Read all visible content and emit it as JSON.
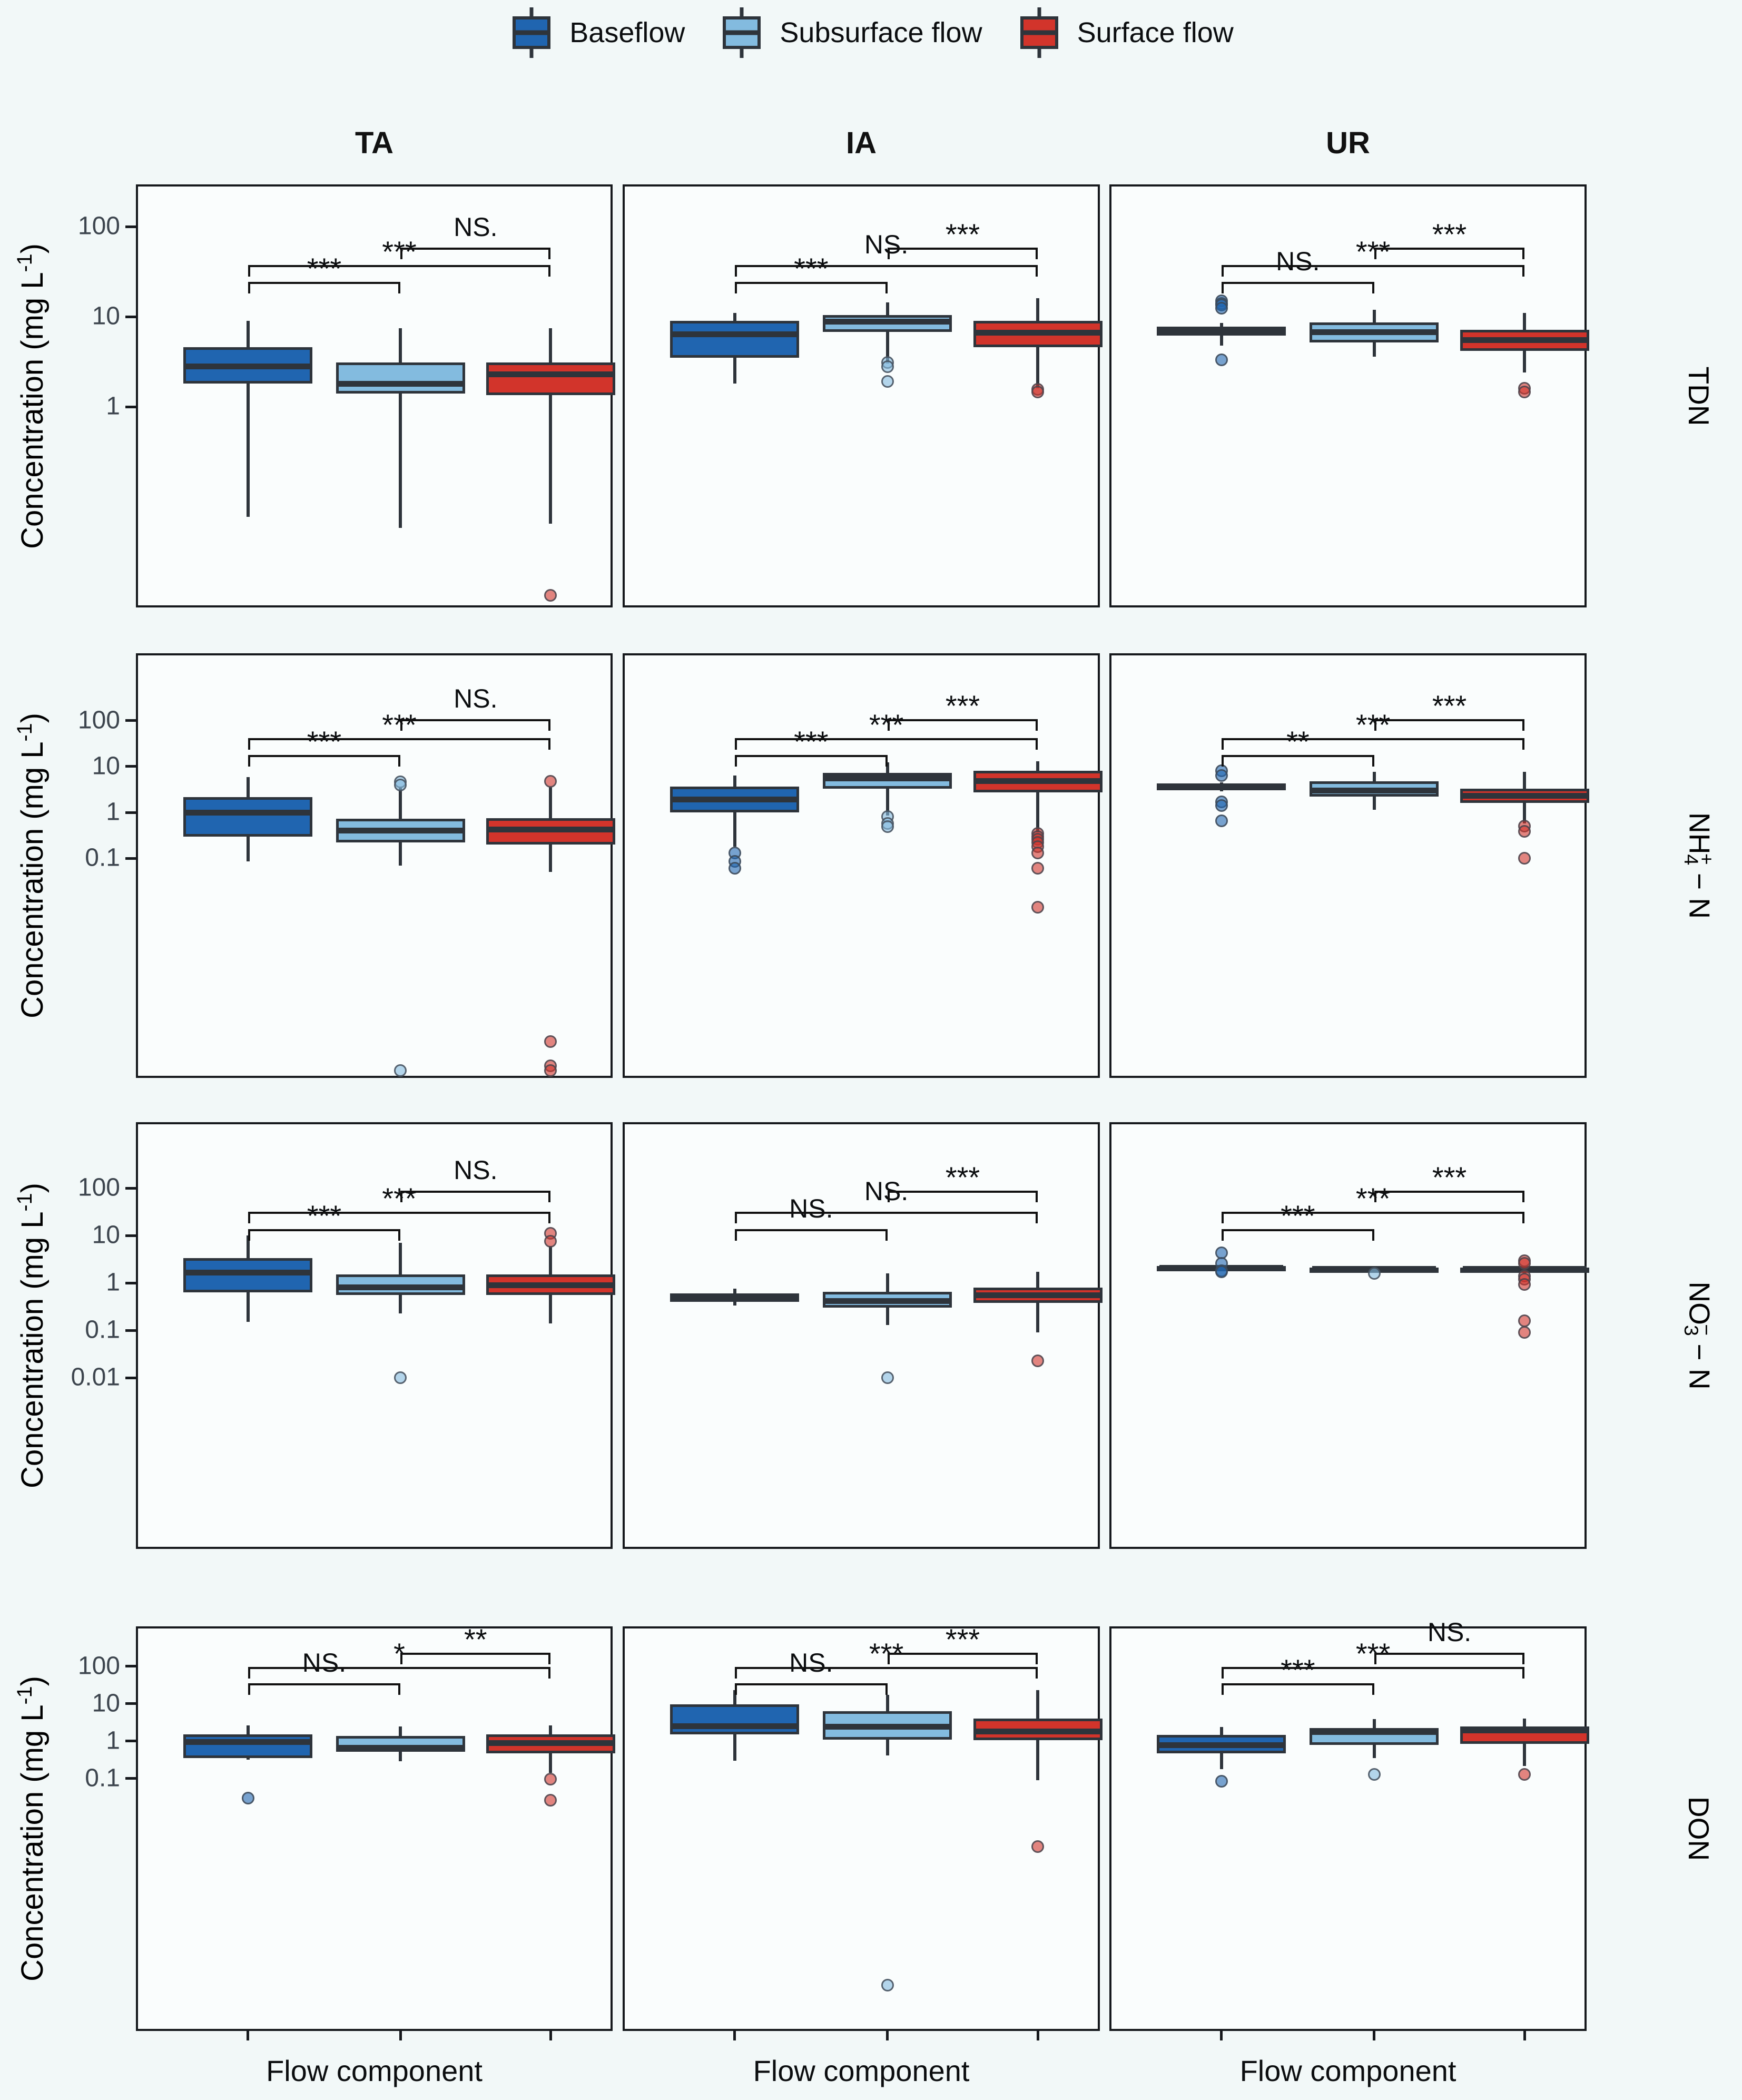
{
  "legend": {
    "items": [
      {
        "label": "Baseflow",
        "color": "#2065b0"
      },
      {
        "label": "Subsurface flow",
        "color": "#83bbdf"
      },
      {
        "label": "Surface flow",
        "color": "#d2342b"
      }
    ]
  },
  "columns": [
    "TA",
    "IA",
    "UR"
  ],
  "axis": {
    "y_label": "Concentration (mg L-1)",
    "y_label_parts": [
      {
        "t": "Concentration (mg L"
      },
      {
        "t": "-1",
        "sup": true
      },
      {
        "t": ")"
      }
    ],
    "x_label": "Flow component"
  },
  "chart_data": {
    "type": "box",
    "y_scale": "log10",
    "legend_position": "top",
    "rows": [
      {
        "facet": "TDN",
        "facet_parts": [
          {
            "t": "TDN"
          }
        ],
        "y_ticks": [
          100,
          10,
          1
        ],
        "y_log_top": 2.47,
        "y_log_bottom": -2.23,
        "sig_tiers": {
          "1-2": 0.23,
          "1-3": 0.19,
          "2-3": 0.15
        },
        "panels": [
          {
            "site": "TA",
            "series": [
              {
                "name": "Baseflow",
                "whislo": 0.06,
                "q1": 1.8,
                "med": 2.8,
                "q3": 4.6,
                "whishi": 9,
                "outliers": []
              },
              {
                "name": "Subsurface flow",
                "whislo": 0.045,
                "q1": 1.4,
                "med": 1.8,
                "q3": 3.1,
                "whishi": 7.4,
                "outliers": []
              },
              {
                "name": "Surface flow",
                "whislo": 0.05,
                "q1": 1.35,
                "med": 2.3,
                "q3": 3.1,
                "whishi": 7.4,
                "outliers": [
                  0.008
                ]
              }
            ],
            "significance": [
              {
                "pair": "1-2",
                "label": "***"
              },
              {
                "pair": "1-3",
                "label": "***"
              },
              {
                "pair": "2-3",
                "label": "NS."
              }
            ]
          },
          {
            "site": "IA",
            "series": [
              {
                "name": "Baseflow",
                "whislo": 1.8,
                "q1": 3.5,
                "med": 6.4,
                "q3": 9,
                "whishi": 11,
                "outliers": []
              },
              {
                "name": "Subsurface flow",
                "whislo": 3,
                "q1": 6.8,
                "med": 8.8,
                "q3": 10.5,
                "whishi": 14.5,
                "outliers": [
                  3.1,
                  2.8,
                  1.9
                ]
              },
              {
                "name": "Surface flow",
                "whislo": 1.6,
                "q1": 4.6,
                "med": 6.6,
                "q3": 9,
                "whishi": 16,
                "outliers": [
                  1.55,
                  1.45
                ]
              }
            ],
            "significance": [
              {
                "pair": "1-2",
                "label": "***"
              },
              {
                "pair": "1-3",
                "label": "NS."
              },
              {
                "pair": "2-3",
                "label": "***"
              }
            ]
          },
          {
            "site": "UR",
            "series": [
              {
                "name": "Baseflow",
                "whislo": 4.8,
                "q1": 6.2,
                "med": 7,
                "q3": 7.8,
                "whishi": 8.5,
                "outliers": [
                  15,
                  14,
                  13.5,
                  12.5,
                  3.3
                ]
              },
              {
                "name": "Subsurface flow",
                "whislo": 3.6,
                "q1": 5.2,
                "med": 6.7,
                "q3": 8.6,
                "whishi": 12,
                "outliers": []
              },
              {
                "name": "Surface flow",
                "whislo": 2.4,
                "q1": 4.2,
                "med": 5.5,
                "q3": 7.2,
                "whishi": 11,
                "outliers": [
                  1.6,
                  1.45
                ]
              }
            ],
            "significance": [
              {
                "pair": "1-2",
                "label": "NS."
              },
              {
                "pair": "1-3",
                "label": "***"
              },
              {
                "pair": "2-3",
                "label": "***"
              }
            ]
          }
        ]
      },
      {
        "facet": "NH4+-N",
        "facet_parts": [
          {
            "t": "NH"
          },
          {
            "t": "4",
            "sub": true
          },
          {
            "t": "+",
            "sup": true
          },
          {
            "t": " − N"
          }
        ],
        "y_ticks": [
          100,
          10,
          1,
          0.1
        ],
        "y_log_top": 3.47,
        "y_log_bottom": -5.79,
        "sig_tiers": {
          "1-2": 0.24,
          "1-3": 0.2,
          "2-3": 0.155
        },
        "panels": [
          {
            "site": "TA",
            "series": [
              {
                "name": "Baseflow",
                "whislo": 0.085,
                "q1": 0.3,
                "med": 1.0,
                "q3": 2.15,
                "whishi": 5.9,
                "outliers": []
              },
              {
                "name": "Subsurface flow",
                "whislo": 0.07,
                "q1": 0.22,
                "med": 0.4,
                "q3": 0.72,
                "whishi": 3.6,
                "outliers": [
                  4.6,
                  4.0,
                  1.5e-06
                ]
              },
              {
                "name": "Surface flow",
                "whislo": 0.05,
                "q1": 0.2,
                "med": 0.42,
                "q3": 0.75,
                "whishi": 3.6,
                "outliers": [
                  4.8,
                  1e-05,
                  3e-06,
                  1.5e-06
                ]
              }
            ],
            "significance": [
              {
                "pair": "1-2",
                "label": "***"
              },
              {
                "pair": "1-3",
                "label": "***"
              },
              {
                "pair": "2-3",
                "label": "NS."
              }
            ]
          },
          {
            "site": "IA",
            "series": [
              {
                "name": "Baseflow",
                "whislo": 0.18,
                "q1": 1.0,
                "med": 1.9,
                "q3": 3.7,
                "whishi": 6.4,
                "outliers": [
                  0.13,
                  0.085,
                  0.06
                ]
              },
              {
                "name": "Subsurface flow",
                "whislo": 0.85,
                "q1": 3.3,
                "med": 5.5,
                "q3": 7.3,
                "whishi": 12.4,
                "outliers": [
                  0.81,
                  0.57,
                  0.49
                ]
              },
              {
                "name": "Surface flow",
                "whislo": 0.37,
                "q1": 2.7,
                "med": 4.8,
                "q3": 8.1,
                "whishi": 13,
                "outliers": [
                  0.35,
                  0.3,
                  0.26,
                  0.22,
                  0.18,
                  0.13,
                  0.06,
                  0.0085
                ]
              }
            ],
            "significance": [
              {
                "pair": "1-2",
                "label": "***"
              },
              {
                "pair": "1-3",
                "label": "***"
              },
              {
                "pair": "2-3",
                "label": "***"
              }
            ]
          },
          {
            "site": "UR",
            "series": [
              {
                "name": "Baseflow",
                "whislo": 2.9,
                "q1": 3.0,
                "med": 3.6,
                "q3": 4.3,
                "whishi": 4.5,
                "outliers": [
                  8.1,
                  6.3,
                  1.7,
                  1.4,
                  0.66
                ]
              },
              {
                "name": "Subsurface flow",
                "whislo": 1.15,
                "q1": 2.2,
                "med": 3.0,
                "q3": 4.8,
                "whishi": 7.7,
                "outliers": []
              },
              {
                "name": "Surface flow",
                "whislo": 0.57,
                "q1": 1.6,
                "med": 2.3,
                "q3": 3.3,
                "whishi": 7.7,
                "outliers": [
                  0.5,
                  0.39,
                  0.1
                ]
              }
            ],
            "significance": [
              {
                "pair": "1-2",
                "label": "**"
              },
              {
                "pair": "1-3",
                "label": "***"
              },
              {
                "pair": "2-3",
                "label": "***"
              }
            ]
          }
        ]
      },
      {
        "facet": "NO3--N",
        "facet_parts": [
          {
            "t": "NO"
          },
          {
            "t": "3",
            "sub": true
          },
          {
            "t": "−",
            "sup": true
          },
          {
            "t": " − N"
          }
        ],
        "y_ticks": [
          100,
          10,
          1,
          0.1,
          0.01
        ],
        "y_log_top": 3.39,
        "y_log_bottom": -5.61,
        "sig_tiers": {
          "1-2": 0.25,
          "1-3": 0.21,
          "2-3": 0.16
        },
        "panels": [
          {
            "site": "TA",
            "series": [
              {
                "name": "Baseflow",
                "whislo": 0.15,
                "q1": 0.63,
                "med": 1.66,
                "q3": 3.3,
                "whishi": 10,
                "outliers": []
              },
              {
                "name": "Subsurface flow",
                "whislo": 0.23,
                "q1": 0.55,
                "med": 0.8,
                "q3": 1.5,
                "whishi": 7,
                "outliers": [
                  0.01
                ]
              },
              {
                "name": "Surface flow",
                "whislo": 0.14,
                "q1": 0.55,
                "med": 0.9,
                "q3": 1.5,
                "whishi": 6,
                "outliers": [
                  11,
                  7.5
                ]
              }
            ],
            "significance": [
              {
                "pair": "1-2",
                "label": "***"
              },
              {
                "pair": "1-3",
                "label": "***"
              },
              {
                "pair": "2-3",
                "label": "NS."
              }
            ]
          },
          {
            "site": "IA",
            "series": [
              {
                "name": "Baseflow",
                "whislo": 0.33,
                "q1": 0.4,
                "med": 0.5,
                "q3": 0.6,
                "whishi": 0.75,
                "outliers": []
              },
              {
                "name": "Subsurface flow",
                "whislo": 0.13,
                "q1": 0.3,
                "med": 0.42,
                "q3": 0.65,
                "whishi": 1.6,
                "outliers": [
                  0.01
                ]
              },
              {
                "name": "Surface flow",
                "whislo": 0.09,
                "q1": 0.38,
                "med": 0.55,
                "q3": 0.8,
                "whishi": 1.7,
                "outliers": [
                  0.023
                ]
              }
            ],
            "significance": [
              {
                "pair": "1-2",
                "label": "NS."
              },
              {
                "pair": "1-3",
                "label": "NS."
              },
              {
                "pair": "2-3",
                "label": "***"
              }
            ]
          },
          {
            "site": "UR",
            "series": [
              {
                "name": "Baseflow",
                "whislo": 1.95,
                "q1": 2.0,
                "med": 2.1,
                "q3": 2.25,
                "whishi": 2.4,
                "outliers": [
                  4.3,
                  2.6,
                  1.8,
                  1.7
                ]
              },
              {
                "name": "Subsurface flow",
                "whislo": 1.9,
                "q1": 1.95,
                "med": 2.0,
                "q3": 2.1,
                "whishi": 2.2,
                "outliers": [
                  1.6
                ]
              },
              {
                "name": "Surface flow",
                "whislo": 1.6,
                "q1": 1.85,
                "med": 1.95,
                "q3": 2.1,
                "whishi": 2.3,
                "outliers": [
                  2.9,
                  2.6,
                  1.4,
                  1.2,
                  0.94,
                  0.16,
                  0.09
                ]
              }
            ],
            "significance": [
              {
                "pair": "1-2",
                "label": "***"
              },
              {
                "pair": "1-3",
                "label": "***"
              },
              {
                "pair": "2-3",
                "label": "***"
              }
            ]
          }
        ]
      },
      {
        "facet": "DON",
        "facet_parts": [
          {
            "t": "DON"
          }
        ],
        "y_ticks": [
          100,
          10,
          1,
          0.1
        ],
        "y_log_top": 3.07,
        "y_log_bottom": -7.75,
        "sig_tiers": {
          "1-2": 0.14,
          "1-3": 0.1,
          "2-3": 0.065
        },
        "panels": [
          {
            "site": "TA",
            "series": [
              {
                "name": "Baseflow",
                "whislo": 0.32,
                "q1": 0.35,
                "med": 0.94,
                "q3": 1.5,
                "whishi": 2.6,
                "outliers": [
                  0.03
                ]
              },
              {
                "name": "Subsurface flow",
                "whislo": 0.29,
                "q1": 0.52,
                "med": 0.66,
                "q3": 1.4,
                "whishi": 2.5,
                "outliers": []
              },
              {
                "name": "Surface flow",
                "whislo": 0.14,
                "q1": 0.47,
                "med": 0.9,
                "q3": 1.5,
                "whishi": 2.6,
                "outliers": [
                  0.097,
                  0.026
                ]
              }
            ],
            "significance": [
              {
                "pair": "1-2",
                "label": "NS."
              },
              {
                "pair": "1-3",
                "label": "*"
              },
              {
                "pair": "2-3",
                "label": "**"
              }
            ]
          },
          {
            "site": "IA",
            "series": [
              {
                "name": "Baseflow",
                "whislo": 0.3,
                "q1": 1.52,
                "med": 2.5,
                "q3": 9.7,
                "whishi": 23,
                "outliers": []
              },
              {
                "name": "Subsurface flow",
                "whislo": 0.42,
                "q1": 1.1,
                "med": 2.4,
                "q3": 6.3,
                "whishi": 17.5,
                "outliers": [
                  3e-07
                ]
              },
              {
                "name": "Surface flow",
                "whislo": 0.09,
                "q1": 1.05,
                "med": 1.8,
                "q3": 4.0,
                "whishi": 23,
                "outliers": [
                  0.0015
                ]
              }
            ],
            "significance": [
              {
                "pair": "1-2",
                "label": "NS."
              },
              {
                "pair": "1-3",
                "label": "***"
              },
              {
                "pair": "2-3",
                "label": "***"
              }
            ]
          },
          {
            "site": "UR",
            "series": [
              {
                "name": "Baseflow",
                "whislo": 0.18,
                "q1": 0.47,
                "med": 0.77,
                "q3": 1.48,
                "whishi": 2.4,
                "outliers": [
                  0.086
                ]
              },
              {
                "name": "Subsurface flow",
                "whislo": 0.355,
                "q1": 0.8,
                "med": 1.74,
                "q3": 2.25,
                "whishi": 3.9,
                "outliers": [
                  0.13
                ]
              },
              {
                "name": "Surface flow",
                "whislo": 0.22,
                "q1": 0.85,
                "med": 1.91,
                "q3": 2.5,
                "whishi": 4.0,
                "outliers": [
                  0.13
                ]
              }
            ],
            "significance": [
              {
                "pair": "1-2",
                "label": "***"
              },
              {
                "pair": "1-3",
                "label": "***"
              },
              {
                "pair": "2-3",
                "label": "NS."
              }
            ]
          }
        ]
      }
    ]
  }
}
